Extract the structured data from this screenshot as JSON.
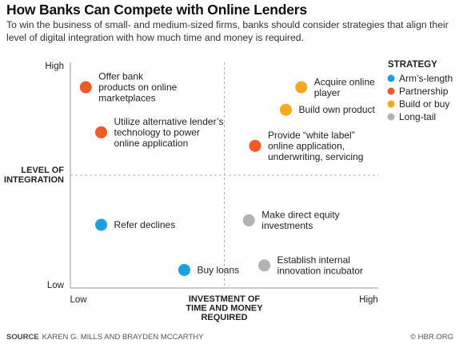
{
  "title": "How Banks Can Compete with Online Lenders",
  "subtitle": "To win the business of small- and medium-sized firms, banks should consider strategies that align their level of digital integration with how much time and money is required.",
  "chart_data": {
    "type": "scatter",
    "x_axis": {
      "label_lines": [
        "INVESTMENT OF",
        "TIME AND MONEY",
        "REQUIRED"
      ],
      "low_label": "Low",
      "high_label": "High",
      "range": [
        0,
        10
      ],
      "midpoint": 5
    },
    "y_axis": {
      "label_lines": [
        "LEVEL OF",
        "INTEGRATION"
      ],
      "low_label": "Low",
      "high_label": "High",
      "range": [
        0,
        10
      ],
      "midpoint": 5
    },
    "grid": "dashed quadrant dividers",
    "legend": {
      "title": "STRATEGY",
      "placement": "right",
      "items": [
        {
          "key": "arms_length",
          "label": "Arm’s-length",
          "color": "#1ba1e2"
        },
        {
          "key": "partnership",
          "label": "Partnership",
          "color": "#f15a24"
        },
        {
          "key": "build_or_buy",
          "label": "Build or buy",
          "color": "#f7a823"
        },
        {
          "key": "long_tail",
          "label": "Long-tail",
          "color": "#b3b3b3"
        }
      ]
    },
    "points": [
      {
        "label_lines": [
          "Offer bank",
          "products on online",
          "marketplaces"
        ],
        "strategy": "partnership",
        "x": 0.5,
        "y": 8.9
      },
      {
        "label_lines": [
          "Utilize alternative lender’s",
          "technology to power",
          "online application"
        ],
        "strategy": "partnership",
        "x": 1.0,
        "y": 6.9
      },
      {
        "label_lines": [
          "Acquire online",
          "player"
        ],
        "strategy": "build_or_buy",
        "x": 7.5,
        "y": 8.9
      },
      {
        "label_lines": [
          "Build own product"
        ],
        "strategy": "build_or_buy",
        "x": 7.0,
        "y": 7.9
      },
      {
        "label_lines": [
          "Provide “white label”",
          "online application,",
          "underwriting, servicing"
        ],
        "strategy": "partnership",
        "x": 6.0,
        "y": 6.3
      },
      {
        "label_lines": [
          "Refer declines"
        ],
        "strategy": "arms_length",
        "x": 1.0,
        "y": 2.8
      },
      {
        "label_lines": [
          "Buy loans"
        ],
        "strategy": "arms_length",
        "x": 3.7,
        "y": 0.8
      },
      {
        "label_lines": [
          "Make direct equity",
          "investments"
        ],
        "strategy": "long_tail",
        "x": 5.8,
        "y": 3.0
      },
      {
        "label_lines": [
          "Establish internal",
          "innovation incubator"
        ],
        "strategy": "long_tail",
        "x": 6.3,
        "y": 1.0
      }
    ]
  },
  "footer": {
    "source_key": "SOURCE",
    "source_text": "KAREN G. MILLS AND BRAYDEN MCCARTHY",
    "credit": "© HBR.ORG"
  }
}
